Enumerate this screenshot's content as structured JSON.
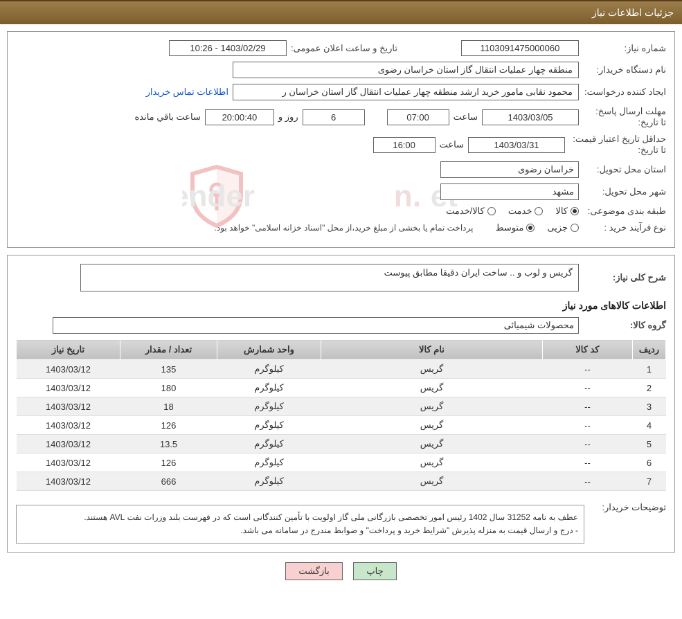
{
  "header": {
    "title": "جزئیات اطلاعات نیاز"
  },
  "fields": {
    "need_no_label": "شماره نیاز:",
    "need_no": "1103091475000060",
    "announce_label": "تاریخ و ساعت اعلان عمومی:",
    "announce_value": "1403/02/29 - 10:26",
    "buyer_label": "نام دستگاه خریدار:",
    "buyer_value": "منطقه چهار عملیات انتقال گاز   استان خراسان رضوی",
    "creator_label": "ایجاد کننده درخواست:",
    "creator_value": "محمود نقابی مامور خرید ارشد منطقه چهار عملیات انتقال گاز   استان خراسان ر",
    "contact_link": "اطلاعات تماس خریدار",
    "deadline_label": "مهلت ارسال پاسخ:",
    "to_date_label": "تا تاریخ:",
    "deadline_date": "1403/03/05",
    "time_label": "ساعت",
    "deadline_time": "07:00",
    "days": "6",
    "days_label": "روز و",
    "countdown": "20:00:40",
    "remain_label": "ساعت باقي مانده",
    "min_valid_label": "حداقل تاریخ اعتبار قیمت:",
    "min_valid_date": "1403/03/31",
    "min_valid_time": "16:00",
    "province_label": "استان محل تحویل:",
    "province_value": "خراسان رضوی",
    "city_label": "شهر محل تحویل:",
    "city_value": "مشهد",
    "category_label": "طبقه بندی موضوعی:",
    "cat_goods": "کالا",
    "cat_service": "خدمت",
    "cat_goods_service": "کالا/خدمت",
    "process_label": "نوع فرآیند خرید :",
    "proc_partial": "جزیی",
    "proc_medium": "متوسط",
    "process_note": "پرداخت تمام یا بخشی از مبلغ خرید،از محل \"اسناد خزانه اسلامی\" خواهد بود.",
    "overall_label": "شرح کلی نیاز:",
    "overall_text": "گریس و لوب و .. ساخت ایران دقیقا مطابق پیوست",
    "items_heading": "اطلاعات کالاهای مورد نیاز",
    "group_label": "گروه کالا:",
    "group_value": "محصولات شیمیائی",
    "buyer_note_label": "توضیحات خریدار:",
    "buyer_note": "عطف به نامه 31252 سال 1402 رئیس امور تخصصی بازرگانی ملی گاز اولویت با تأمین کنندگانی است که در فهرست بلند وزرات نفت AVL هستند.\n- درج و ارسال قیمت به منزله پذیرش \"شرایط خرید و پرداخت\" و ضوابط مندرج در سامانه می باشد."
  },
  "table": {
    "headers": {
      "row": "ردیف",
      "code": "کد کالا",
      "name": "نام کالا",
      "unit": "واحد شمارش",
      "qty": "تعداد / مقدار",
      "date": "تاریخ نیاز"
    },
    "rows": [
      {
        "row": "1",
        "code": "--",
        "name": "گریس",
        "unit": "کیلوگرم",
        "qty": "135",
        "date": "1403/03/12"
      },
      {
        "row": "2",
        "code": "--",
        "name": "گریس",
        "unit": "کیلوگرم",
        "qty": "180",
        "date": "1403/03/12"
      },
      {
        "row": "3",
        "code": "--",
        "name": "گریس",
        "unit": "کیلوگرم",
        "qty": "18",
        "date": "1403/03/12"
      },
      {
        "row": "4",
        "code": "--",
        "name": "گریس",
        "unit": "کیلوگرم",
        "qty": "126",
        "date": "1403/03/12"
      },
      {
        "row": "5",
        "code": "--",
        "name": "گریس",
        "unit": "کیلوگرم",
        "qty": "13.5",
        "date": "1403/03/12"
      },
      {
        "row": "6",
        "code": "--",
        "name": "گریس",
        "unit": "کیلوگرم",
        "qty": "126",
        "date": "1403/03/12"
      },
      {
        "row": "7",
        "code": "--",
        "name": "گریس",
        "unit": "کیلوگرم",
        "qty": "666",
        "date": "1403/03/12"
      }
    ]
  },
  "buttons": {
    "print": "چاپ",
    "back": "بازگشت"
  },
  "watermark": {
    "text": "AriaTender.net",
    "shield_color": "#d9534f",
    "text_color": "#cccccc"
  },
  "styling": {
    "header_bg": "#8a6d3b",
    "header_text": "#ffffff",
    "border_color": "#999999",
    "input_border": "#666666",
    "table_header_bg": "#c0c0c0",
    "row_alt_bg": "#f0f0f0",
    "link_color": "#1155cc",
    "btn_green_bg": "#c8e6c9",
    "btn_pink_bg": "#f8d0d0",
    "font_family": "Tahoma",
    "base_font_size": 13
  }
}
